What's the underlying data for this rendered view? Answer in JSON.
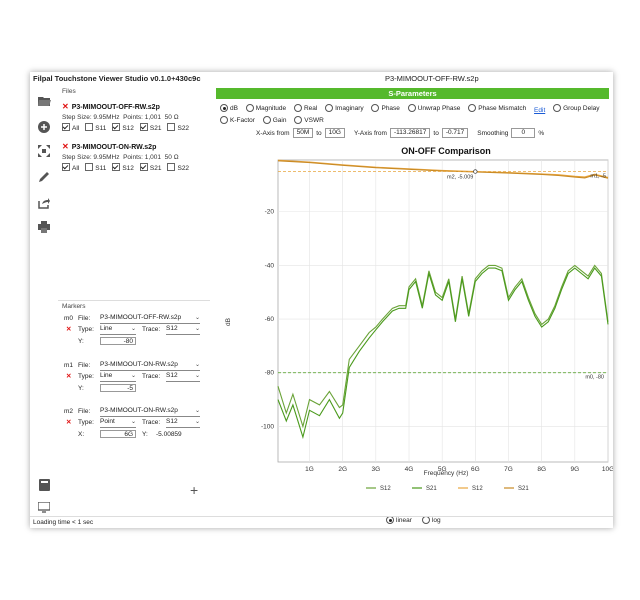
{
  "window": {
    "app_title": "Filpal Touchstone Viewer Studio v0.1.0+430c9c",
    "file_title": "P3-MIMOOUT-OFF-RW.s2p",
    "loading": "Loading time < 1 sec"
  },
  "toolbar": {
    "icons": [
      "folder-open-icon",
      "add-circle-icon",
      "fit-view-icon",
      "pen-icon",
      "export-icon",
      "print-icon",
      "book-icon",
      "monitor-icon"
    ]
  },
  "files": {
    "label": "Files",
    "items": [
      {
        "name": "P3-MIMOOUT-OFF-RW.s2p",
        "step": "Step Size: 9.95MHz",
        "points": "Points: 1,001",
        "impedance": "50 Ω",
        "checks": [
          {
            "label": "All",
            "on": true
          },
          {
            "label": "S11",
            "on": false
          },
          {
            "label": "S12",
            "on": true
          },
          {
            "label": "S21",
            "on": true
          },
          {
            "label": "S22",
            "on": false
          }
        ]
      },
      {
        "name": "P3-MIMOOUT-ON-RW.s2p",
        "step": "Step Size: 9.95MHz",
        "points": "Points: 1,001",
        "impedance": "50 Ω",
        "checks": [
          {
            "label": "All",
            "on": true
          },
          {
            "label": "S11",
            "on": false
          },
          {
            "label": "S12",
            "on": true
          },
          {
            "label": "S21",
            "on": true
          },
          {
            "label": "S22",
            "on": false
          }
        ]
      }
    ]
  },
  "markers": {
    "label": "Markers",
    "file_label": "File:",
    "type_label": "Type:",
    "trace_label": "Trace:",
    "y_label": "Y:",
    "x_label": "X:",
    "items": [
      {
        "id": "m0",
        "file": "P3-MIMOOUT-OFF-RW.s2p",
        "type": "Line",
        "trace": "S12",
        "value": "-80"
      },
      {
        "id": "m1",
        "file": "P3-MIMOOUT-ON-RW.s2p",
        "type": "Line",
        "trace": "S12",
        "value": "-5"
      },
      {
        "id": "m2",
        "file": "P3-MIMOOUT-ON-RW.s2p",
        "type": "Point",
        "trace": "S12",
        "x_value": "6G",
        "y_readout": "-5.00859"
      }
    ]
  },
  "sparams": {
    "banner": "S-Parameters",
    "modes": [
      {
        "label": "dB",
        "on": true
      },
      {
        "label": "Magnitude",
        "on": false
      },
      {
        "label": "Real",
        "on": false
      },
      {
        "label": "Imaginary",
        "on": false
      },
      {
        "label": "Phase",
        "on": false
      },
      {
        "label": "Unwrap Phase",
        "on": false
      },
      {
        "label": "Phase Mismatch",
        "on": false
      }
    ],
    "edit_link": "Edit",
    "modes2": [
      {
        "label": "Group Delay",
        "on": false
      },
      {
        "label": "K-Factor",
        "on": false
      }
    ],
    "modes3": [
      {
        "label": "Gain",
        "on": false
      },
      {
        "label": "VSWR",
        "on": false
      }
    ],
    "xaxis_label": "X-Axis from",
    "x_from": "50M",
    "to_label": "to",
    "x_to": "10G",
    "yaxis_label": "Y-Axis from",
    "y_from": "-113.26817",
    "y_to": "-0.717",
    "smoothing_label": "Smoothing",
    "smoothing": "0",
    "pct": "%",
    "scale_linear": "linear",
    "scale_log": "log"
  },
  "colors": {
    "accent": "#55b92c",
    "off_s12": "#6aa338",
    "off_s21": "#4a9a1c",
    "on_s12": "#e8a640",
    "on_s21": "#c98a24"
  },
  "chart_data": {
    "type": "line",
    "title": "ON-OFF Comparison",
    "xlabel": "Frequency (Hz)",
    "ylabel": "dB",
    "xlim": [
      0.05,
      10
    ],
    "ylim": [
      -113.26817,
      -0.717
    ],
    "xticks": [
      "1G",
      "2G",
      "3G",
      "4G",
      "5G",
      "6G",
      "7G",
      "8G",
      "9G",
      "10G"
    ],
    "yticks": [
      -20,
      -40,
      -60,
      -80,
      -100
    ],
    "grid": true,
    "legend_position": "bottom",
    "annotations": [
      {
        "label": "m2, -5.009",
        "x": 6,
        "y": -5.009
      },
      {
        "label": "m1, -5",
        "y": -5
      },
      {
        "label": "m0, -80",
        "y": -80
      }
    ],
    "series": [
      {
        "name": "S12",
        "color": "#6aa338",
        "x": [
          0.05,
          0.3,
          0.5,
          0.8,
          1.0,
          1.3,
          1.6,
          1.9,
          2.0,
          2.2,
          2.5,
          2.8,
          3.0,
          3.2,
          3.5,
          3.7,
          3.9,
          4.0,
          4.2,
          4.4,
          4.6,
          4.8,
          5.0,
          5.2,
          5.4,
          5.6,
          5.8,
          6.0,
          6.2,
          6.4,
          6.6,
          6.8,
          7.0,
          7.2,
          7.4,
          7.6,
          7.8,
          8.0,
          8.2,
          8.4,
          8.6,
          8.8,
          9.0,
          9.2,
          9.4,
          9.6,
          9.8,
          10.0
        ],
        "y": [
          -85,
          -95,
          -88,
          -100,
          -90,
          -92,
          -87,
          -93,
          -92,
          -75,
          -70,
          -65,
          -63,
          -60,
          -56,
          -55,
          -55,
          -48,
          -45,
          -55,
          -42,
          -50,
          -52,
          -45,
          -60,
          -44,
          -58,
          -45,
          -42,
          -40,
          -40,
          -41,
          -52,
          -48,
          -45,
          -52,
          -58,
          -62,
          -60,
          -55,
          -48,
          -42,
          -40,
          -42,
          -44,
          -40,
          -43,
          -61
        ]
      },
      {
        "name": "S21",
        "color": "#4a9a1c",
        "x": [
          0.05,
          0.3,
          0.5,
          0.8,
          1.0,
          1.3,
          1.6,
          1.9,
          2.0,
          2.2,
          2.5,
          2.8,
          3.0,
          3.2,
          3.5,
          3.7,
          3.9,
          4.0,
          4.2,
          4.4,
          4.6,
          4.8,
          5.0,
          5.2,
          5.4,
          5.6,
          5.8,
          6.0,
          6.2,
          6.4,
          6.6,
          6.8,
          7.0,
          7.2,
          7.4,
          7.6,
          7.8,
          8.0,
          8.2,
          8.4,
          8.6,
          8.8,
          9.0,
          9.2,
          9.4,
          9.6,
          9.8,
          10.0
        ],
        "y": [
          -90,
          -98,
          -92,
          -104,
          -94,
          -96,
          -90,
          -97,
          -95,
          -78,
          -72,
          -67,
          -64,
          -61,
          -57,
          -56,
          -56,
          -49,
          -46,
          -56,
          -43,
          -51,
          -53,
          -46,
          -61,
          -45,
          -59,
          -46,
          -43,
          -41,
          -41,
          -42,
          -53,
          -49,
          -46,
          -53,
          -59,
          -63,
          -61,
          -56,
          -49,
          -43,
          -41,
          -43,
          -45,
          -41,
          -44,
          -62
        ]
      },
      {
        "name": "S12",
        "color": "#e8a640",
        "x": [
          0.05,
          1,
          2,
          3,
          4,
          5,
          6,
          7,
          8,
          8.5,
          9,
          9.3,
          9.6,
          10
        ],
        "y": [
          -0.8,
          -1.5,
          -2.5,
          -3.4,
          -4.0,
          -4.6,
          -5.0,
          -5.4,
          -5.9,
          -6.2,
          -6.8,
          -7.0,
          -6.0,
          -7.2
        ]
      },
      {
        "name": "S21",
        "color": "#c98a24",
        "x": [
          0.05,
          1,
          2,
          3,
          4,
          5,
          6,
          7,
          8,
          8.5,
          9,
          9.3,
          9.6,
          10
        ],
        "y": [
          -1.0,
          -1.7,
          -2.7,
          -3.6,
          -4.2,
          -4.8,
          -5.2,
          -5.6,
          -6.1,
          -6.5,
          -7.1,
          -7.4,
          -6.3,
          -7.5
        ]
      }
    ]
  }
}
